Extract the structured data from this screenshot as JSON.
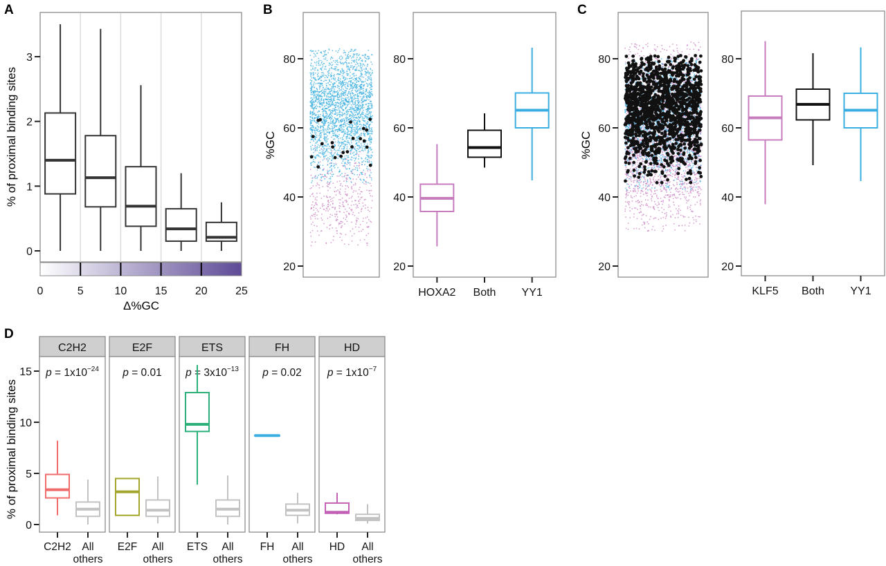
{
  "figure": {
    "panel_labels": [
      "A",
      "B",
      "C",
      "D"
    ]
  },
  "chart_data": [
    {
      "id": "A",
      "type": "box",
      "title": "",
      "xlabel": "Δ%GC",
      "ylabel": "% of proximal binding sites",
      "ylim": [
        -0.2,
        3.65
      ],
      "yticks": [
        0,
        1,
        2,
        3
      ],
      "xticks": [
        "0",
        "5",
        "10",
        "15",
        "20",
        "25"
      ],
      "colorbar": {
        "from": "#ffffff",
        "to": "#5e4a96",
        "range": [
          0,
          25
        ],
        "breaks": [
          5,
          10,
          15,
          20
        ]
      },
      "grid": "vertical-bin-separators",
      "categories": [
        "0-5",
        "5-10",
        "10-15",
        "15-20",
        "20-25"
      ],
      "boxes": [
        {
          "min": 0.0,
          "q1": 0.88,
          "median": 1.4,
          "q3": 2.13,
          "max": 3.5
        },
        {
          "min": 0.0,
          "q1": 0.68,
          "median": 1.13,
          "q3": 1.78,
          "max": 3.43
        },
        {
          "min": 0.0,
          "q1": 0.38,
          "median": 0.69,
          "q3": 1.3,
          "max": 2.56
        },
        {
          "min": 0.0,
          "q1": 0.15,
          "median": 0.34,
          "q3": 0.65,
          "max": 1.2
        },
        {
          "min": 0.0,
          "q1": 0.15,
          "median": 0.21,
          "q3": 0.44,
          "max": 0.75
        }
      ],
      "color": "#333333"
    },
    {
      "id": "B-scatter",
      "type": "scatter",
      "ylabel": "%GC",
      "ylim": [
        16.5,
        93
      ],
      "yticks": [
        20,
        40,
        60,
        80
      ],
      "series": [
        {
          "name": "HOXA2",
          "color": "#c77cbf",
          "range": [
            25,
            55
          ],
          "center": 39,
          "n": 420,
          "size": "small"
        },
        {
          "name": "YY1",
          "color": "#3aaee0",
          "range": [
            44,
            83
          ],
          "center": 65,
          "n": 2600,
          "size": "small"
        },
        {
          "name": "Both",
          "color": "#111111",
          "range": [
            48,
            64
          ],
          "center": 55,
          "n": 22,
          "size": "large"
        }
      ]
    },
    {
      "id": "B-box",
      "type": "box",
      "ylim": [
        16.5,
        93
      ],
      "yticks": [
        20,
        40,
        60,
        80
      ],
      "categories": [
        "HOXA2",
        "Both",
        "YY1"
      ],
      "boxes": [
        {
          "min": 25.7,
          "q1": 35.8,
          "median": 39.6,
          "q3": 43.7,
          "max": 55.3,
          "color": "#c77cbf"
        },
        {
          "min": 48.5,
          "q1": 51.5,
          "median": 54.3,
          "q3": 59.3,
          "max": 64.2,
          "color": "#111111"
        },
        {
          "min": 44.8,
          "q1": 60.0,
          "median": 65.1,
          "q3": 70.1,
          "max": 83.2,
          "color": "#3aaee0"
        }
      ]
    },
    {
      "id": "C-scatter",
      "type": "scatter",
      "ylabel": "%GC",
      "ylim": [
        16.5,
        93
      ],
      "yticks": [
        20,
        40,
        60,
        80
      ],
      "series": [
        {
          "name": "KLF5",
          "color": "#c77cbf",
          "range": [
            30,
            85
          ],
          "center": 58,
          "n": 2600,
          "size": "small"
        },
        {
          "name": "YY1",
          "color": "#3aaee0",
          "range": [
            42,
            80
          ],
          "center": 64,
          "n": 2200,
          "size": "small"
        },
        {
          "name": "Both",
          "color": "#111111",
          "range": [
            44,
            81
          ],
          "center": 66,
          "n": 1500,
          "size": "large"
        }
      ]
    },
    {
      "id": "C-box",
      "type": "box",
      "ylim": [
        16.5,
        93
      ],
      "yticks": [
        20,
        40,
        60,
        80
      ],
      "categories": [
        "KLF5",
        "Both",
        "YY1"
      ],
      "boxes": [
        {
          "min": 37.9,
          "q1": 56.5,
          "median": 62.9,
          "q3": 69.2,
          "max": 85.1,
          "color": "#c77cbf"
        },
        {
          "min": 49.2,
          "q1": 62.3,
          "median": 66.8,
          "q3": 71.2,
          "max": 81.6,
          "color": "#111111"
        },
        {
          "min": 44.6,
          "q1": 60.0,
          "median": 65.1,
          "q3": 70.0,
          "max": 83.3,
          "color": "#3aaee0"
        }
      ]
    },
    {
      "id": "D",
      "type": "box",
      "ylabel": "% of proximal binding sites",
      "ylim": [
        -0.8,
        16.3
      ],
      "yticks": [
        0,
        5,
        10,
        15
      ],
      "facets": [
        {
          "strip": "C2H2",
          "p_prefix": "p",
          "p_text": " = 1x10",
          "p_exp": "−24",
          "categories": [
            "C2H2",
            "All others"
          ],
          "boxes": [
            {
              "min": 0.9,
              "q1": 2.6,
              "median": 3.4,
              "q3": 4.9,
              "max": 8.2,
              "color": "#f06b6b"
            },
            {
              "min": 0.0,
              "q1": 0.8,
              "median": 1.5,
              "q3": 2.2,
              "max": 4.4,
              "color": "#c2c2c2"
            }
          ]
        },
        {
          "strip": "E2F",
          "p_prefix": "p",
          "p_text": " = 0.01",
          "p_exp": "",
          "categories": [
            "E2F",
            "All others"
          ],
          "boxes": [
            {
              "min": 0.9,
              "q1": 0.9,
              "median": 3.2,
              "q3": 4.5,
              "max": 4.5,
              "color": "#a4a52b"
            },
            {
              "min": 0.1,
              "q1": 0.8,
              "median": 1.4,
              "q3": 2.4,
              "max": 4.7,
              "color": "#c2c2c2"
            }
          ]
        },
        {
          "strip": "ETS",
          "p_prefix": "p",
          "p_text": " = 3x10",
          "p_exp": "−13",
          "categories": [
            "ETS",
            "All others"
          ],
          "boxes": [
            {
              "min": 3.9,
              "q1": 9.1,
              "median": 9.8,
              "q3": 12.9,
              "max": 15.6,
              "color": "#2bb079"
            },
            {
              "min": 0.0,
              "q1": 0.8,
              "median": 1.5,
              "q3": 2.4,
              "max": 4.8,
              "color": "#c2c2c2"
            }
          ]
        },
        {
          "strip": "FH",
          "p_prefix": "p",
          "p_text": " = 0.02",
          "p_exp": "",
          "categories": [
            "FH",
            "All others"
          ],
          "boxes": [
            {
              "min": 8.7,
              "q1": 8.7,
              "median": 8.7,
              "q3": 8.7,
              "max": 8.7,
              "color": "#3aaee0"
            },
            {
              "min": 0.1,
              "q1": 0.9,
              "median": 1.4,
              "q3": 2.0,
              "max": 3.1,
              "color": "#c2c2c2"
            }
          ]
        },
        {
          "strip": "HD",
          "p_prefix": "p",
          "p_text": " = 1x10",
          "p_exp": "−7",
          "categories": [
            "HD",
            "All others"
          ],
          "boxes": [
            {
              "min": 1.0,
              "q1": 1.1,
              "median": 1.2,
              "q3": 2.1,
              "max": 3.1,
              "color": "#c261b5"
            },
            {
              "min": 0.1,
              "q1": 0.4,
              "median": 0.6,
              "q3": 1.0,
              "max": 2.0,
              "color": "#c2c2c2"
            }
          ]
        }
      ]
    }
  ]
}
